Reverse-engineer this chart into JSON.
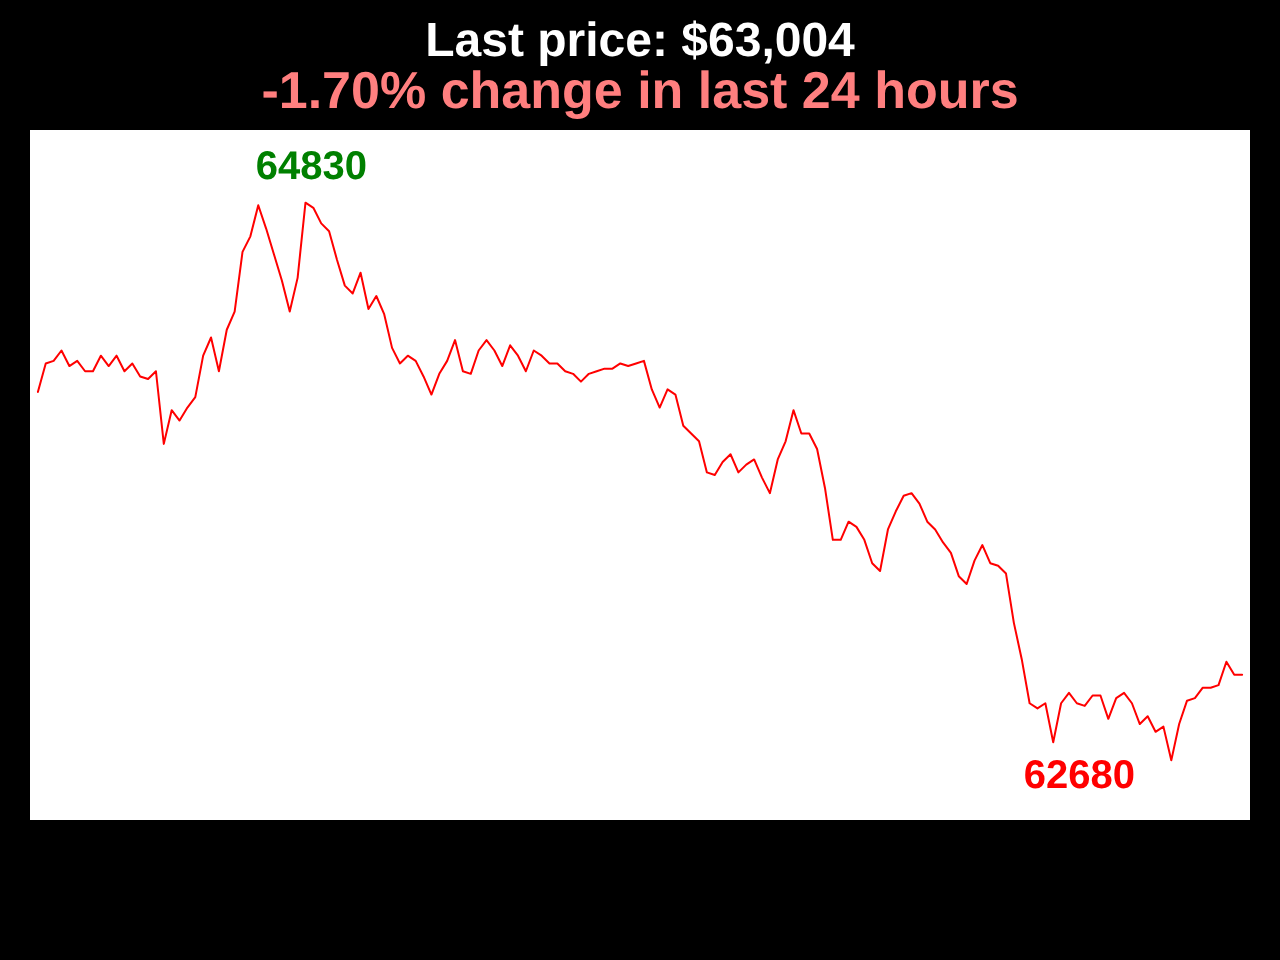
{
  "chart_data": {
    "type": "line",
    "title": "Last price: $63,004",
    "subtitle": "-1.70% change in last 24 hours",
    "color": "#ff0000",
    "categories": [
      null,
      null,
      null,
      null,
      null,
      null,
      null,
      null,
      null,
      null,
      null,
      null,
      null,
      null,
      null,
      null,
      null,
      null,
      null,
      null,
      null,
      null,
      null,
      null,
      null,
      null,
      null,
      null,
      null,
      null,
      null,
      null,
      null,
      null,
      null,
      null,
      null,
      null,
      null,
      null,
      null,
      null,
      null,
      null,
      null,
      null,
      null,
      null,
      null,
      null,
      null,
      null,
      null,
      null,
      null,
      null,
      null,
      null,
      null,
      null,
      null,
      null,
      null,
      null,
      null,
      null,
      null,
      null,
      null,
      null,
      null,
      null,
      null,
      null,
      null,
      null,
      null,
      null,
      null,
      null,
      null,
      null,
      null,
      null,
      null,
      null,
      null,
      null,
      null,
      null,
      null,
      null,
      null,
      null,
      null,
      null,
      null,
      null,
      null,
      null,
      null,
      null,
      null,
      null,
      null,
      null,
      null,
      null,
      null,
      null,
      null,
      null,
      null,
      null,
      null,
      null,
      null,
      null,
      null,
      null,
      null,
      null,
      null,
      null,
      null,
      null,
      null,
      null,
      null,
      null,
      null,
      null,
      null,
      null,
      null,
      null,
      null,
      null,
      null,
      null,
      null,
      null,
      null,
      null,
      null,
      null,
      null,
      null,
      null,
      null,
      null,
      null,
      null,
      null
    ],
    "values": [
      64100,
      64210,
      64220,
      64260,
      64200,
      64220,
      64180,
      64180,
      64240,
      64200,
      64240,
      64180,
      64210,
      64160,
      64150,
      64180,
      63900,
      64030,
      63990,
      64040,
      64080,
      64240,
      64310,
      64180,
      64340,
      64410,
      64640,
      64700,
      64820,
      64730,
      64630,
      64530,
      64410,
      64540,
      64830,
      64810,
      64750,
      64720,
      64610,
      64510,
      64480,
      64560,
      64420,
      64470,
      64400,
      64270,
      64210,
      64240,
      64220,
      64160,
      64090,
      64170,
      64220,
      64300,
      64180,
      64170,
      64260,
      64300,
      64260,
      64200,
      64280,
      64240,
      64180,
      64260,
      64240,
      64210,
      64210,
      64180,
      64170,
      64140,
      64170,
      64180,
      64190,
      64190,
      64210,
      64200,
      64210,
      64220,
      64110,
      64040,
      64110,
      64090,
      63970,
      63940,
      63910,
      63790,
      63780,
      63830,
      63860,
      63790,
      63820,
      63840,
      63770,
      63710,
      63840,
      63910,
      64030,
      63940,
      63940,
      63880,
      63730,
      63530,
      63530,
      63600,
      63580,
      63530,
      63440,
      63410,
      63570,
      63640,
      63700,
      63710,
      63670,
      63600,
      63570,
      63520,
      63480,
      63390,
      63360,
      63450,
      63510,
      63440,
      63430,
      63400,
      63210,
      63070,
      62900,
      62880,
      62900,
      62750,
      62900,
      62940,
      62900,
      62890,
      62930,
      62930,
      62840,
      62920,
      62940,
      62900,
      62820,
      62850,
      62790,
      62810,
      62680,
      62820,
      62910,
      62920,
      62960,
      62960,
      62970,
      63060,
      63010,
      63010
    ],
    "value_labels": [
      null,
      null,
      null,
      null,
      null,
      null,
      null,
      null,
      null,
      null,
      null,
      null,
      null,
      null,
      null,
      null,
      null,
      null,
      null,
      null,
      null,
      null,
      null,
      null,
      null,
      null,
      null,
      null,
      null,
      null,
      null,
      null,
      null,
      null,
      "64830",
      null,
      null,
      null,
      null,
      null,
      null,
      null,
      null,
      null,
      null,
      null,
      null,
      null,
      null,
      null,
      null,
      null,
      null,
      null,
      null,
      null,
      null,
      null,
      null,
      null,
      null,
      null,
      null,
      null,
      null,
      null,
      null,
      null,
      null,
      null,
      null,
      null,
      null,
      null,
      null,
      null,
      null,
      null,
      null,
      null,
      null,
      null,
      null,
      null,
      null,
      null,
      null,
      null,
      null,
      null,
      null,
      null,
      null,
      null,
      null,
      null,
      null,
      null,
      null,
      null,
      null,
      null,
      null,
      null,
      null,
      null,
      null,
      null,
      null,
      null,
      null,
      null,
      null,
      null,
      null,
      null,
      null,
      null,
      null,
      null,
      null,
      null,
      null,
      null,
      null,
      null,
      null,
      null,
      null,
      null,
      null,
      null,
      null,
      null,
      null,
      null,
      null,
      null,
      null,
      null,
      null,
      null,
      null,
      null,
      "62680",
      null,
      null,
      null,
      null,
      null,
      null,
      null,
      null,
      null
    ],
    "ylim": [
      62450,
      65110
    ]
  }
}
